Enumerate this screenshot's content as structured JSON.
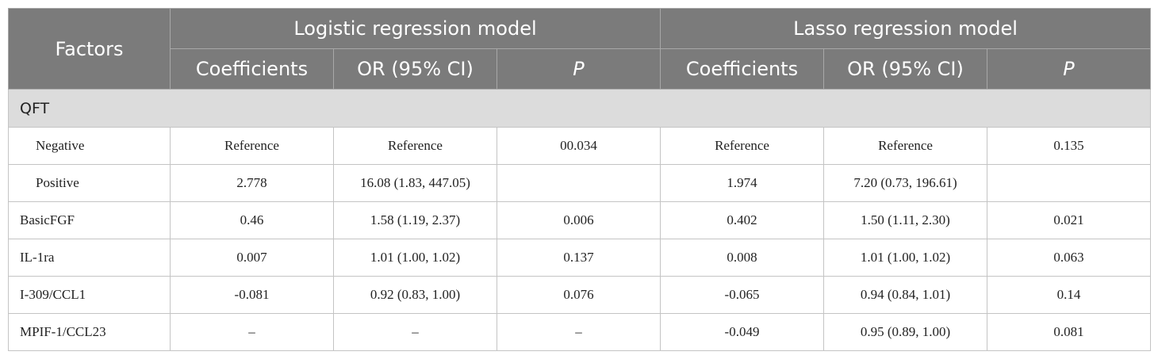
{
  "header": {
    "factors": "Factors",
    "group1": "Logistic regression model",
    "group2": "Lasso regression model",
    "sub": [
      "Coefficients",
      "OR (95% CI)",
      "P",
      "Coefficients",
      "OR (95% CI)",
      "P"
    ]
  },
  "section": {
    "label": "QFT"
  },
  "rows": [
    {
      "factor": "Negative",
      "c1": "Reference",
      "or1": "Reference",
      "p1": "00.034",
      "c2": "Reference",
      "or2": "Reference",
      "p2": "0.135"
    },
    {
      "factor": "Positive",
      "c1": "2.778",
      "or1": "16.08 (1.83, 447.05)",
      "p1": "",
      "c2": "1.974",
      "or2": "7.20 (0.73, 196.61)",
      "p2": ""
    },
    {
      "factor": "BasicFGF",
      "c1": "0.46",
      "or1": "1.58 (1.19, 2.37)",
      "p1": "0.006",
      "c2": "0.402",
      "or2": "1.50 (1.11, 2.30)",
      "p2": "0.021"
    },
    {
      "factor": "IL-1ra",
      "c1": "0.007",
      "or1": "1.01 (1.00, 1.02)",
      "p1": "0.137",
      "c2": "0.008",
      "or2": "1.01 (1.00, 1.02)",
      "p2": "0.063"
    },
    {
      "factor": "I-309/CCL1",
      "c1": "-0.081",
      "or1": "0.92 (0.83, 1.00)",
      "p1": "0.076",
      "c2": "-0.065",
      "or2": "0.94 (0.84, 1.01)",
      "p2": "0.14"
    },
    {
      "factor": "MPIF-1/CCL23",
      "c1": "–",
      "or1": "–",
      "p1": "–",
      "c2": "-0.049",
      "or2": "0.95 (0.89, 1.00)",
      "p2": "0.081"
    }
  ]
}
